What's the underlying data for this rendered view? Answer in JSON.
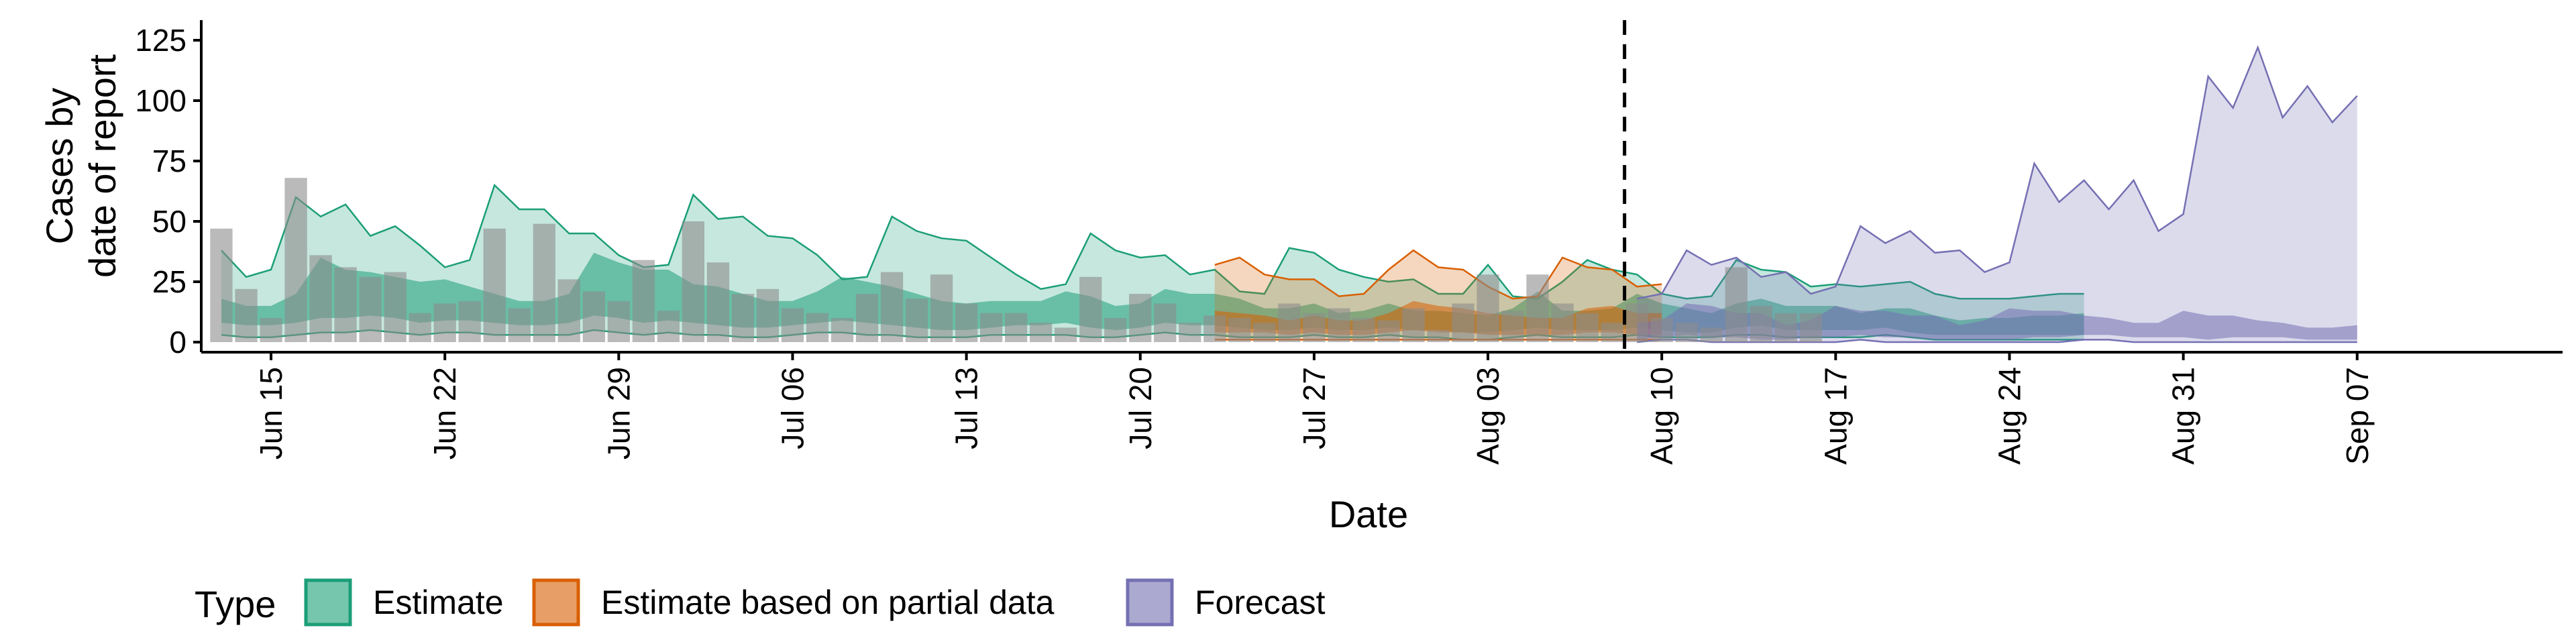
{
  "chart_data": {
    "type": "area",
    "xlabel": "Date",
    "ylabel_lines": [
      "Cases by",
      "date of report"
    ],
    "ylim": [
      0,
      125
    ],
    "yticks": [
      0,
      25,
      50,
      75,
      100,
      125
    ],
    "x_start": "2020-06-13",
    "x_end": "2020-09-08",
    "x_tick_labels": [
      "Jun 15",
      "Jun 22",
      "Jun 29",
      "Jul 06",
      "Jul 13",
      "Jul 20",
      "Jul 27",
      "Aug 03",
      "Aug 10",
      "Aug 17",
      "Aug 24",
      "Aug 31",
      "Sep 07"
    ],
    "forecast_start_marker": "Aug 09",
    "legend": {
      "title": "Type",
      "position": "bottom-left",
      "items": [
        "Estimate",
        "Estimate based on partial data",
        "Forecast"
      ]
    },
    "colors": {
      "Estimate": "#1b9e77",
      "Estimate based on partial data": "#d95f02",
      "Forecast": "#7570b3",
      "reported_bars": "#8c8c8c"
    },
    "series": [
      {
        "type": "Estimate",
        "x_first": "Jun 13",
        "lower_90": [
          3,
          2,
          2,
          3,
          4,
          4,
          5,
          4,
          3,
          4,
          4,
          3,
          3,
          3,
          3,
          5,
          4,
          3,
          4,
          3,
          3,
          2,
          2,
          3,
          4,
          4,
          3,
          3,
          2,
          2,
          2,
          3,
          3,
          3,
          3,
          2,
          2,
          3,
          4,
          3,
          3,
          2,
          2,
          2,
          3,
          2,
          2,
          3,
          2,
          2,
          1,
          1,
          2,
          3,
          2,
          2,
          2,
          3,
          2,
          2,
          2,
          3,
          3,
          2,
          2,
          2,
          2,
          3,
          2,
          1,
          1,
          1,
          1,
          1,
          1,
          1
        ],
        "lower_50": [
          8,
          7,
          7,
          8,
          10,
          10,
          11,
          10,
          8,
          9,
          9,
          8,
          7,
          7,
          8,
          11,
          10,
          8,
          9,
          8,
          7,
          6,
          6,
          7,
          8,
          9,
          8,
          7,
          6,
          5,
          5,
          6,
          7,
          7,
          8,
          6,
          5,
          6,
          8,
          7,
          7,
          6,
          5,
          5,
          6,
          5,
          5,
          6,
          5,
          5,
          4,
          4,
          5,
          6,
          5,
          5,
          5,
          6,
          5,
          4,
          4,
          6,
          7,
          5,
          5,
          5,
          5,
          6,
          4,
          3,
          3,
          3,
          3,
          3,
          3,
          3
        ],
        "upper_50": [
          18,
          15,
          15,
          20,
          35,
          30,
          29,
          27,
          25,
          26,
          23,
          20,
          17,
          17,
          20,
          37,
          33,
          30,
          30,
          24,
          23,
          20,
          17,
          17,
          21,
          27,
          25,
          23,
          20,
          17,
          16,
          17,
          17,
          17,
          21,
          19,
          15,
          16,
          22,
          20,
          20,
          18,
          14,
          14,
          16,
          12,
          13,
          16,
          13,
          13,
          12,
          11,
          14,
          21,
          13,
          13,
          14,
          20,
          16,
          14,
          12,
          16,
          18,
          15,
          15,
          15,
          12,
          14,
          14,
          11,
          9,
          10,
          10,
          11,
          11,
          12
        ],
        "upper_90": [
          38,
          27,
          30,
          60,
          52,
          57,
          44,
          48,
          40,
          31,
          34,
          65,
          55,
          55,
          45,
          45,
          36,
          31,
          32,
          61,
          51,
          52,
          44,
          43,
          36,
          26,
          27,
          52,
          46,
          43,
          42,
          35,
          28,
          22,
          24,
          45,
          38,
          35,
          36,
          28,
          30,
          21,
          20,
          39,
          37,
          30,
          27,
          25,
          26,
          20,
          20,
          32,
          19,
          18,
          25,
          34,
          30,
          28,
          20,
          18,
          19,
          34,
          30,
          29,
          23,
          24,
          23,
          24,
          25,
          20,
          18,
          18,
          18,
          19,
          20,
          20
        ]
      },
      {
        "type": "Estimate based on partial data",
        "x_first": "Jul 23",
        "lower_90": [
          1,
          1,
          1,
          1,
          1,
          1,
          1,
          1,
          1,
          1,
          1,
          1,
          1,
          1,
          1,
          1,
          1,
          1,
          1
        ],
        "lower_50": [
          4,
          4,
          4,
          3,
          4,
          3,
          3,
          4,
          5,
          4,
          4,
          3,
          3,
          3,
          3,
          4,
          4,
          3,
          3
        ],
        "upper_50": [
          13,
          12,
          11,
          9,
          11,
          9,
          9,
          12,
          17,
          15,
          14,
          12,
          11,
          10,
          10,
          14,
          15,
          12,
          12
        ],
        "upper_90": [
          32,
          35,
          28,
          26,
          26,
          19,
          20,
          30,
          38,
          31,
          30,
          23,
          18,
          19,
          35,
          31,
          30,
          23,
          24
        ]
      },
      {
        "type": "Forecast",
        "x_first": "Aug 09",
        "lower_90": [
          0,
          1,
          1,
          0,
          0,
          0,
          0,
          0,
          0,
          1,
          0,
          0,
          0,
          0,
          0,
          0,
          0,
          0,
          1,
          1,
          0,
          0,
          0,
          0,
          0,
          0,
          0,
          0,
          0,
          0
        ],
        "lower_50": [
          1,
          2,
          3,
          2,
          2,
          1,
          1,
          2,
          2,
          3,
          2,
          2,
          1,
          1,
          1,
          1,
          2,
          2,
          3,
          3,
          2,
          2,
          2,
          1,
          2,
          2,
          2,
          1,
          1,
          1
        ],
        "upper_50": [
          8,
          9,
          16,
          15,
          12,
          12,
          7,
          9,
          15,
          13,
          13,
          11,
          11,
          7,
          9,
          14,
          13,
          13,
          11,
          10,
          8,
          8,
          13,
          11,
          11,
          9,
          8,
          6,
          6,
          7
        ],
        "upper_90": [
          18,
          20,
          38,
          32,
          35,
          27,
          29,
          20,
          23,
          48,
          41,
          46,
          37,
          38,
          29,
          33,
          74,
          58,
          67,
          55,
          67,
          46,
          53,
          110,
          97,
          122,
          93,
          106,
          91,
          102
        ]
      }
    ],
    "reported_bars": {
      "x_first": "Jun 13",
      "values": [
        47,
        22,
        10,
        68,
        36,
        31,
        27,
        29,
        12,
        16,
        17,
        47,
        14,
        49,
        26,
        21,
        17,
        34,
        13,
        50,
        33,
        20,
        22,
        14,
        12,
        10,
        20,
        29,
        18,
        28,
        16,
        12,
        12,
        8,
        6,
        27,
        10,
        20,
        16,
        8,
        11,
        10,
        8,
        16,
        12,
        14,
        10,
        9,
        14,
        5,
        16,
        28,
        13,
        28,
        16,
        12,
        8,
        16,
        10,
        8,
        6,
        31,
        15,
        12,
        12
      ]
    }
  }
}
